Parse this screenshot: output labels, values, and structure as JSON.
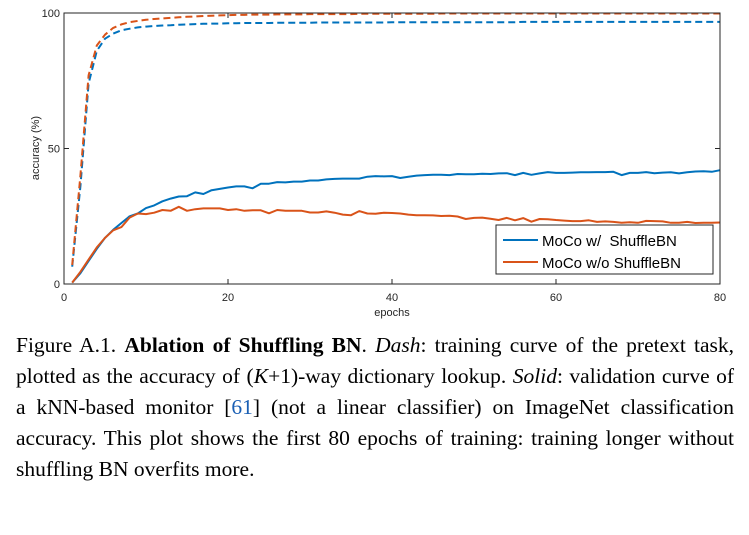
{
  "chart_data": {
    "type": "line",
    "xlabel": "epochs",
    "ylabel": "accuracy (%)",
    "xlim": [
      0,
      80
    ],
    "ylim": [
      0,
      100
    ],
    "xticks": [
      "0",
      "20",
      "40",
      "60",
      "80"
    ],
    "yticks": [
      "0",
      "50",
      "100"
    ],
    "grid": false,
    "legend_position": "bottom-right",
    "x": [
      1,
      2,
      3,
      4,
      5,
      6,
      7,
      8,
      9,
      10,
      11,
      12,
      13,
      14,
      15,
      16,
      17,
      18,
      19,
      20,
      21,
      22,
      23,
      24,
      25,
      26,
      27,
      28,
      29,
      30,
      31,
      32,
      33,
      34,
      35,
      36,
      37,
      38,
      39,
      40,
      41,
      42,
      43,
      44,
      45,
      46,
      47,
      48,
      49,
      50,
      51,
      52,
      53,
      54,
      55,
      56,
      57,
      58,
      59,
      60,
      61,
      62,
      63,
      64,
      65,
      66,
      67,
      68,
      69,
      70,
      71,
      72,
      73,
      74,
      75,
      76,
      77,
      78,
      79,
      80
    ],
    "series": [
      {
        "name": "MoCo w/  ShuffleBN",
        "style": "solid",
        "color": "#0072BD",
        "values": [
          0.5,
          4,
          8.5,
          13,
          17,
          20,
          22.5,
          25,
          26,
          28,
          29,
          30.5,
          31.5,
          32.3,
          32.4,
          33.8,
          33.2,
          34.6,
          35.1,
          35.6,
          36,
          36,
          35.3,
          37,
          37,
          37.6,
          37.5,
          37.8,
          37.8,
          38.2,
          38.2,
          38.6,
          38.8,
          38.9,
          38.9,
          38.9,
          39.6,
          39.8,
          39.7,
          39.8,
          39.1,
          39.6,
          40,
          40.2,
          40.3,
          40.3,
          40.2,
          40.6,
          40.5,
          40.5,
          40.7,
          40.6,
          40.8,
          40.9,
          40.2,
          41,
          40.3,
          40.8,
          41.3,
          41,
          41,
          41.1,
          41.2,
          41.2,
          41.3,
          41.3,
          41.4,
          40.2,
          41,
          41,
          41.3,
          40.9,
          41.1,
          41.2,
          40.8,
          41.2,
          41.5,
          41.6,
          41.4,
          42
        ]
      },
      {
        "name": "MoCo w/o ShuffleBN",
        "style": "solid",
        "color": "#D95319",
        "values": [
          0.5,
          4.5,
          9,
          13.5,
          17,
          19.8,
          21,
          24.5,
          26,
          25.8,
          26.3,
          27.3,
          27,
          28.5,
          27,
          27.6,
          27.9,
          27.9,
          27.9,
          27.3,
          27.6,
          27,
          27.2,
          27.2,
          26.1,
          27.3,
          27,
          27,
          27,
          26.4,
          26.4,
          26.8,
          26.3,
          25.6,
          25.4,
          26.9,
          26,
          25.9,
          26.3,
          26.2,
          26,
          25.6,
          25.4,
          25.4,
          25.3,
          25.1,
          25.2,
          24.9,
          24,
          24.4,
          24.5,
          24.1,
          23.6,
          24.4,
          23.5,
          24.3,
          23,
          24,
          23.9,
          23.6,
          23.4,
          23.2,
          23.2,
          23.5,
          22.9,
          23.1,
          22.9,
          22.6,
          22.8,
          22.6,
          23.3,
          23.2,
          23.1,
          22.6,
          22.6,
          22.9,
          22.5,
          22.6,
          22.6,
          22.7
        ]
      },
      {
        "style": "dashed",
        "color": "#0072BD",
        "values": [
          6.4,
          36,
          74,
          86,
          90.5,
          92.4,
          93.6,
          94.2,
          94.7,
          95,
          95.2,
          95.4,
          95.5,
          95.7,
          95.8,
          95.9,
          96,
          96.1,
          96.1,
          96.2,
          96.2,
          96.3,
          96.3,
          96.3,
          96.3,
          96.4,
          96.4,
          96.4,
          96.4,
          96.4,
          96.5,
          96.5,
          96.5,
          96.5,
          96.5,
          96.5,
          96.5,
          96.5,
          96.5,
          96.6,
          96.6,
          96.6,
          96.6,
          96.6,
          96.6,
          96.6,
          96.6,
          96.6,
          96.6,
          96.6,
          96.6,
          96.6,
          96.6,
          96.6,
          96.6,
          96.7,
          96.7,
          96.7,
          96.7,
          96.7,
          96.7,
          96.7,
          96.7,
          96.7,
          96.7,
          96.7,
          96.7,
          96.7,
          96.7,
          96.7,
          96.7,
          96.7,
          96.7,
          96.7,
          96.7,
          96.7,
          96.7,
          96.7,
          96.7,
          96.7
        ]
      },
      {
        "style": "dashed",
        "color": "#D95319",
        "values": [
          7,
          40,
          77,
          88,
          92,
          94.5,
          95.8,
          96.6,
          97.1,
          97.5,
          97.8,
          98,
          98.2,
          98.4,
          98.6,
          98.7,
          98.9,
          99,
          99.1,
          99.2,
          99.3,
          99.3,
          99.4,
          99.4,
          99.4,
          99.5,
          99.5,
          99.5,
          99.5,
          99.6,
          99.6,
          99.6,
          99.6,
          99.6,
          99.6,
          99.7,
          99.7,
          99.7,
          99.7,
          99.7,
          99.7,
          99.7,
          99.7,
          99.7,
          99.7,
          99.8,
          99.8,
          99.8,
          99.8,
          99.8,
          99.8,
          99.8,
          99.8,
          99.8,
          99.8,
          99.8,
          99.8,
          99.8,
          99.8,
          99.8,
          99.8,
          99.8,
          99.8,
          99.8,
          99.8,
          99.8,
          99.8,
          99.8,
          99.8,
          99.8,
          99.8,
          99.8,
          99.8,
          99.8,
          99.8,
          99.8,
          99.8,
          99.8,
          99.8,
          99.8
        ]
      }
    ]
  },
  "caption": {
    "label": "Figure A.1.",
    "title": "Ablation of Shuffling BN",
    "title_end": ".",
    "dash_term": "Dash",
    "dash_text": ": training curve of the pretext task, plotted as the accuracy of (",
    "k_var": "K",
    "dash_text2": "+1)-way dictionary lookup.",
    "solid_term": "Solid",
    "solid_text": ": validation curve of a kNN-based monitor [",
    "citation": "61",
    "solid_text2": "] (not a linear classifier) on ImageNet classification accuracy. This plot shows the first 80 epochs of training: training longer without shuffling BN overfits more.",
    "citation_color": "#1a5fb4"
  }
}
